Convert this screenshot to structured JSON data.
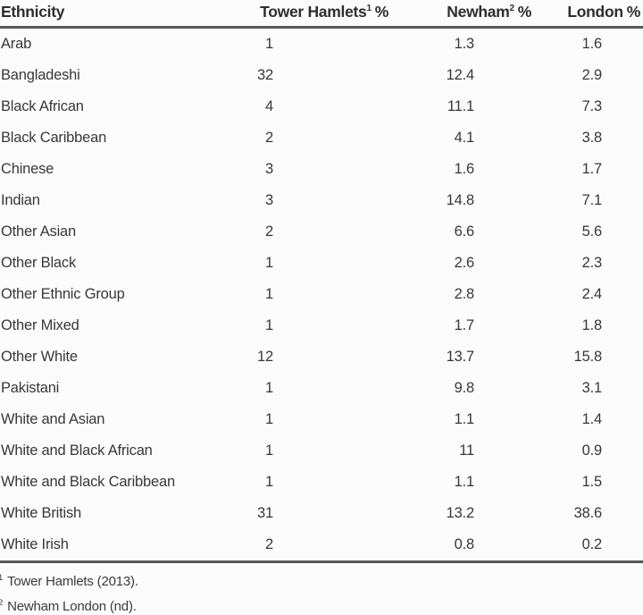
{
  "page": {
    "background": "#fcfcfc",
    "text_color": "#3a3a3a",
    "rule_color": "#565656"
  },
  "table": {
    "columns": [
      {
        "label": "Ethnicity",
        "sup": "",
        "suffix": ""
      },
      {
        "label": "Tower Hamlets",
        "sup": "1",
        "suffix": "%"
      },
      {
        "label": "Newham",
        "sup": "2",
        "suffix": "%"
      },
      {
        "label": "London",
        "sup": "",
        "suffix": "%"
      }
    ],
    "rows": [
      {
        "ethnicity": "Arab",
        "tower_hamlets": "1",
        "newham": "1.3",
        "london": "1.6"
      },
      {
        "ethnicity": "Bangladeshi",
        "tower_hamlets": "32",
        "newham": "12.4",
        "london": "2.9"
      },
      {
        "ethnicity": "Black African",
        "tower_hamlets": "4",
        "newham": "11.1",
        "london": "7.3"
      },
      {
        "ethnicity": "Black Caribbean",
        "tower_hamlets": "2",
        "newham": "4.1",
        "london": "3.8"
      },
      {
        "ethnicity": "Chinese",
        "tower_hamlets": "3",
        "newham": "1.6",
        "london": "1.7"
      },
      {
        "ethnicity": "Indian",
        "tower_hamlets": "3",
        "newham": "14.8",
        "london": "7.1"
      },
      {
        "ethnicity": "Other Asian",
        "tower_hamlets": "2",
        "newham": "6.6",
        "london": "5.6"
      },
      {
        "ethnicity": "Other Black",
        "tower_hamlets": "1",
        "newham": "2.6",
        "london": "2.3"
      },
      {
        "ethnicity": "Other Ethnic Group",
        "tower_hamlets": "1",
        "newham": "2.8",
        "london": "2.4"
      },
      {
        "ethnicity": "Other Mixed",
        "tower_hamlets": "1",
        "newham": "1.7",
        "london": "1.8"
      },
      {
        "ethnicity": "Other White",
        "tower_hamlets": "12",
        "newham": "13.7",
        "london": "15.8"
      },
      {
        "ethnicity": "Pakistani",
        "tower_hamlets": "1",
        "newham": "9.8",
        "london": "3.1"
      },
      {
        "ethnicity": "White and Asian",
        "tower_hamlets": "1",
        "newham": "1.1",
        "london": "1.4"
      },
      {
        "ethnicity": "White and Black African",
        "tower_hamlets": "1",
        "newham": "11",
        "london": "0.9"
      },
      {
        "ethnicity": "White and Black Caribbean",
        "tower_hamlets": "1",
        "newham": "1.1",
        "london": "1.5"
      },
      {
        "ethnicity": "White British",
        "tower_hamlets": "31",
        "newham": "13.2",
        "london": "38.6"
      },
      {
        "ethnicity": "White Irish",
        "tower_hamlets": "2",
        "newham": "0.8",
        "london": "0.2"
      }
    ]
  },
  "footnotes": [
    {
      "marker": "1",
      "text": "Tower Hamlets (2013)."
    },
    {
      "marker": "2",
      "text": "Newham London (nd)."
    }
  ],
  "chart_data": {
    "type": "table",
    "title": "",
    "columns": [
      "Ethnicity",
      "Tower Hamlets1 %",
      "Newham2 %",
      "London %"
    ],
    "rows": [
      [
        "Arab",
        1,
        1.3,
        1.6
      ],
      [
        "Bangladeshi",
        32,
        12.4,
        2.9
      ],
      [
        "Black African",
        4,
        11.1,
        7.3
      ],
      [
        "Black Caribbean",
        2,
        4.1,
        3.8
      ],
      [
        "Chinese",
        3,
        1.6,
        1.7
      ],
      [
        "Indian",
        3,
        14.8,
        7.1
      ],
      [
        "Other Asian",
        2,
        6.6,
        5.6
      ],
      [
        "Other Black",
        1,
        2.6,
        2.3
      ],
      [
        "Other Ethnic Group",
        1,
        2.8,
        2.4
      ],
      [
        "Other Mixed",
        1,
        1.7,
        1.8
      ],
      [
        "Other White",
        12,
        13.7,
        15.8
      ],
      [
        "Pakistani",
        1,
        9.8,
        3.1
      ],
      [
        "White and Asian",
        1,
        1.1,
        1.4
      ],
      [
        "White and Black African",
        1,
        11,
        0.9
      ],
      [
        "White and Black Caribbean",
        1,
        1.1,
        1.5
      ],
      [
        "White British",
        31,
        13.2,
        38.6
      ],
      [
        "White Irish",
        2,
        0.8,
        0.2
      ]
    ]
  }
}
